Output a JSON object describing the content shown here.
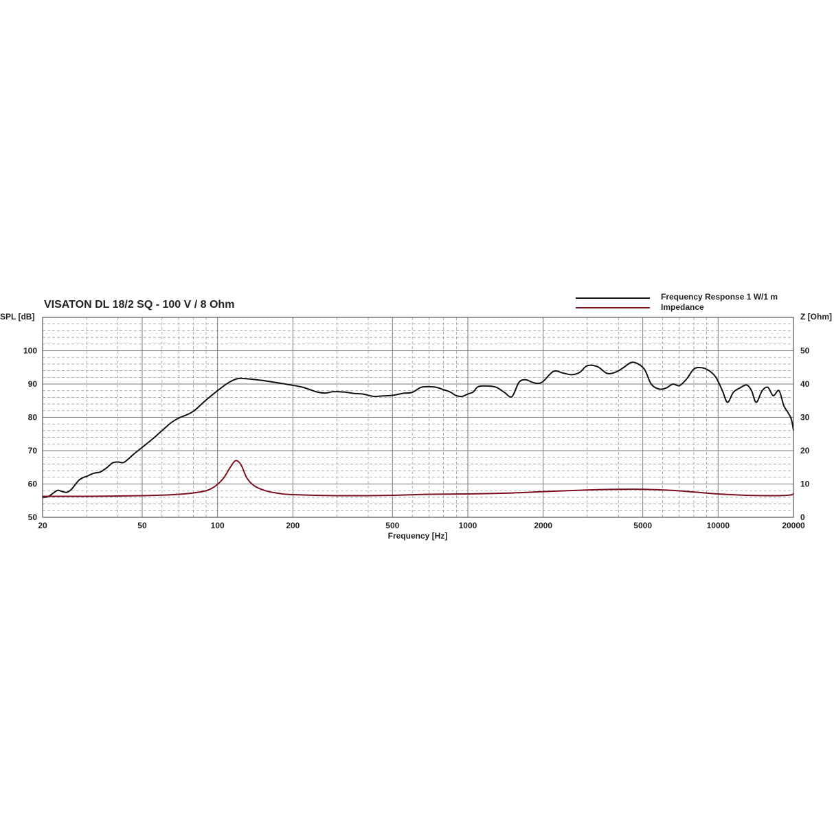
{
  "chart_data": {
    "type": "line",
    "title": "VISATON DL 18/2 SQ - 100 V / 8 Ohm",
    "xlabel": "Frequency [Hz]",
    "ylabel_left": "SPL [dB]",
    "ylabel_right": "Z [Ohm]",
    "x_scale": "log",
    "xlim": [
      20,
      20000
    ],
    "ylim_left": [
      50,
      110
    ],
    "ylim_right": [
      0,
      60
    ],
    "x_ticks": [
      20,
      50,
      100,
      200,
      500,
      1000,
      2000,
      5000,
      10000,
      20000
    ],
    "y_ticks_left": [
      50,
      60,
      70,
      80,
      90,
      100
    ],
    "y_ticks_right": [
      0,
      10,
      20,
      30,
      40,
      50
    ],
    "grid": true,
    "legend_position": "top-right",
    "colors": {
      "spl": "#111111",
      "impedance": "#7a1020",
      "grid": "#8c8c8c"
    },
    "series": [
      {
        "name": "Frequency Response 1 W/1 m",
        "axis": "left",
        "points": [
          [
            20,
            56.0
          ],
          [
            21,
            56.2
          ],
          [
            22,
            57.2
          ],
          [
            23,
            58.1
          ],
          [
            24,
            57.7
          ],
          [
            25,
            57.5
          ],
          [
            26,
            58.3
          ],
          [
            27,
            59.8
          ],
          [
            28,
            61.2
          ],
          [
            29,
            61.9
          ],
          [
            30,
            62.3
          ],
          [
            32,
            63.2
          ],
          [
            34,
            63.6
          ],
          [
            36,
            64.8
          ],
          [
            38,
            66.3
          ],
          [
            40,
            66.6
          ],
          [
            42,
            66.4
          ],
          [
            44,
            67.5
          ],
          [
            46,
            68.8
          ],
          [
            50,
            71.0
          ],
          [
            55,
            73.5
          ],
          [
            60,
            76.0
          ],
          [
            65,
            78.3
          ],
          [
            70,
            79.8
          ],
          [
            75,
            80.7
          ],
          [
            80,
            81.8
          ],
          [
            85,
            83.5
          ],
          [
            90,
            85.2
          ],
          [
            100,
            88.0
          ],
          [
            110,
            90.3
          ],
          [
            120,
            91.6
          ],
          [
            130,
            91.6
          ],
          [
            150,
            91.1
          ],
          [
            170,
            90.5
          ],
          [
            200,
            89.6
          ],
          [
            220,
            89.0
          ],
          [
            250,
            87.6
          ],
          [
            270,
            87.3
          ],
          [
            290,
            87.7
          ],
          [
            320,
            87.6
          ],
          [
            350,
            87.2
          ],
          [
            380,
            87.0
          ],
          [
            420,
            86.3
          ],
          [
            450,
            86.4
          ],
          [
            500,
            86.6
          ],
          [
            550,
            87.2
          ],
          [
            600,
            87.5
          ],
          [
            650,
            89.0
          ],
          [
            700,
            89.2
          ],
          [
            750,
            89.0
          ],
          [
            800,
            88.3
          ],
          [
            850,
            87.6
          ],
          [
            900,
            86.5
          ],
          [
            950,
            86.3
          ],
          [
            1000,
            87.0
          ],
          [
            1050,
            87.6
          ],
          [
            1100,
            89.2
          ],
          [
            1200,
            89.4
          ],
          [
            1300,
            89.0
          ],
          [
            1400,
            87.5
          ],
          [
            1500,
            86.2
          ],
          [
            1600,
            90.5
          ],
          [
            1700,
            91.3
          ],
          [
            1800,
            90.6
          ],
          [
            1900,
            90.2
          ],
          [
            2000,
            90.8
          ],
          [
            2200,
            93.8
          ],
          [
            2400,
            93.3
          ],
          [
            2600,
            92.8
          ],
          [
            2800,
            93.5
          ],
          [
            3000,
            95.5
          ],
          [
            3300,
            95.2
          ],
          [
            3600,
            93.2
          ],
          [
            3900,
            93.6
          ],
          [
            4200,
            95.0
          ],
          [
            4500,
            96.5
          ],
          [
            4800,
            96.0
          ],
          [
            5100,
            94.2
          ],
          [
            5400,
            90.0
          ],
          [
            5800,
            88.5
          ],
          [
            6200,
            88.8
          ],
          [
            6600,
            90.0
          ],
          [
            7000,
            89.5
          ],
          [
            7500,
            91.6
          ],
          [
            8000,
            94.5
          ],
          [
            8600,
            94.9
          ],
          [
            9200,
            94.0
          ],
          [
            9800,
            92.0
          ],
          [
            10400,
            88.0
          ],
          [
            10900,
            84.5
          ],
          [
            11500,
            87.5
          ],
          [
            12200,
            88.8
          ],
          [
            13000,
            89.7
          ],
          [
            13600,
            88.0
          ],
          [
            14200,
            84.5
          ],
          [
            15000,
            88.0
          ],
          [
            15800,
            89.0
          ],
          [
            16600,
            86.5
          ],
          [
            17500,
            88.0
          ],
          [
            18300,
            83.5
          ],
          [
            19000,
            81.5
          ],
          [
            19600,
            79.5
          ],
          [
            20000,
            76.2
          ]
        ]
      },
      {
        "name": "Impedance",
        "axis": "right",
        "points": [
          [
            20,
            6.3
          ],
          [
            30,
            6.3
          ],
          [
            50,
            6.5
          ],
          [
            70,
            6.9
          ],
          [
            85,
            7.6
          ],
          [
            95,
            8.7
          ],
          [
            105,
            11.5
          ],
          [
            112,
            14.8
          ],
          [
            118,
            17.0
          ],
          [
            124,
            15.8
          ],
          [
            131,
            11.8
          ],
          [
            140,
            9.5
          ],
          [
            155,
            8.0
          ],
          [
            175,
            7.2
          ],
          [
            200,
            6.8
          ],
          [
            300,
            6.5
          ],
          [
            500,
            6.6
          ],
          [
            700,
            6.9
          ],
          [
            1000,
            7.0
          ],
          [
            1500,
            7.3
          ],
          [
            2000,
            7.7
          ],
          [
            3000,
            8.2
          ],
          [
            4000,
            8.4
          ],
          [
            5000,
            8.4
          ],
          [
            6500,
            8.1
          ],
          [
            8000,
            7.6
          ],
          [
            10000,
            7.0
          ],
          [
            13000,
            6.6
          ],
          [
            17000,
            6.5
          ],
          [
            19500,
            6.7
          ],
          [
            20000,
            7.1
          ]
        ]
      }
    ]
  }
}
